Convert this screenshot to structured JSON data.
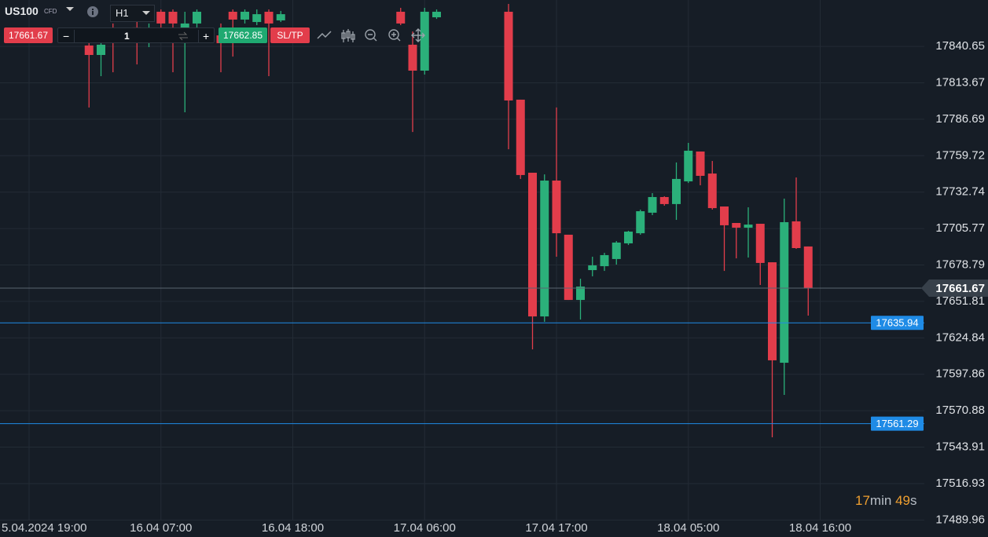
{
  "toolbar": {
    "symbol": "US100",
    "symbol_type": "CFD",
    "timeframe": "H1",
    "sell": "17661.67",
    "quantity": "1",
    "buy": "17662.85",
    "sltp": "SL/TP"
  },
  "timer": {
    "minutes": "17",
    "minutes_unit": "min",
    "seconds": "49",
    "seconds_unit": "s"
  },
  "chart_data": {
    "type": "candlestick",
    "categories": [
      "5.04.2024 19:00",
      null,
      null,
      null,
      null,
      null,
      null,
      null,
      null,
      null,
      null,
      "16.04 07:00",
      null,
      null,
      null,
      null,
      null,
      null,
      null,
      null,
      null,
      null,
      "16.04 18:00",
      null,
      null,
      null,
      null,
      null,
      null,
      null,
      null,
      null,
      null,
      "17.04 06:00",
      null,
      null,
      null,
      null,
      null,
      null,
      null,
      null,
      null,
      null,
      "17.04 17:00",
      null,
      null,
      null,
      null,
      null,
      null,
      null,
      null,
      null,
      null,
      "18.04 05:00",
      null,
      null,
      null,
      null,
      null,
      null,
      null,
      null,
      null,
      null,
      "18.04 16:00"
    ],
    "open": [
      null,
      null,
      null,
      null,
      null,
      17841.3,
      17834.3,
      17851.7,
      null,
      17854.7,
      17845.9,
      17866.3,
      17866.3,
      17843.0,
      17857.6,
      null,
      17848.8,
      17866.3,
      17860.5,
      17858.7,
      17866.3,
      17859.9,
      null,
      null,
      null,
      null,
      null,
      null,
      null,
      null,
      null,
      17866.3,
      17841.9,
      17822.7,
      17862.2,
      null,
      null,
      null,
      null,
      null,
      17866.3,
      17801.2,
      17747.1,
      17640.7,
      17741.3,
      17701.2,
      17652.9,
      17675.0,
      17677.9,
      17683.2,
      17694.8,
      17702.3,
      17717.5,
      17729.1,
      17723.9,
      17740.7,
      17762.8,
      17746.5,
      17722.1,
      17709.9,
      17706.4,
      17709.3,
      17680.8,
      17606.4,
      17711.1,
      17692.5,
      null
    ],
    "high": [
      null,
      null,
      null,
      null,
      null,
      17845.9,
      17845.9,
      17857.6,
      null,
      17860.5,
      17857.6,
      17868.0,
      17868.0,
      17866.3,
      17868.0,
      null,
      17857.6,
      17868.0,
      17868.0,
      17868.0,
      17868.0,
      17866.9,
      null,
      null,
      null,
      null,
      null,
      null,
      null,
      null,
      null,
      17869.2,
      17851.7,
      17869.2,
      17868.0,
      null,
      null,
      null,
      null,
      null,
      17872.1,
      17801.2,
      17747.1,
      17745.9,
      17795.4,
      17701.2,
      17668.6,
      17684.9,
      17687.8,
      17696.5,
      17704.1,
      17719.8,
      17732.0,
      17729.7,
      17754.7,
      17769.2,
      17762.8,
      17755.8,
      17722.1,
      17709.9,
      17721.5,
      17709.3,
      17680.8,
      17727.9,
      17743.6,
      17692.5,
      null
    ],
    "low": [
      null,
      null,
      null,
      null,
      null,
      17795.4,
      17818.6,
      17821.5,
      null,
      17827.3,
      17840.1,
      17851.7,
      17821.5,
      17791.9,
      17854.7,
      null,
      17821.5,
      17833.1,
      17857.6,
      17856.4,
      17818.6,
      17858.7,
      null,
      null,
      null,
      null,
      null,
      null,
      null,
      null,
      null,
      17856.4,
      17777.3,
      17819.8,
      17861.0,
      null,
      null,
      null,
      null,
      null,
      17764.5,
      17742.5,
      17616.3,
      17636.7,
      17684.9,
      17652.9,
      17638.4,
      17670.4,
      17674.4,
      17679.1,
      17693.6,
      17701.2,
      17715.7,
      17722.7,
      17712.2,
      17739.5,
      17737.8,
      17719.8,
      17674.4,
      17683.7,
      17684.3,
      17664.0,
      17551.2,
      17582.6,
      17690.7,
      17641.3,
      null
    ],
    "close": [
      null,
      null,
      null,
      null,
      null,
      17834.3,
      17841.9,
      17845.9,
      null,
      17847.1,
      17851.7,
      17857.6,
      17857.6,
      17857.6,
      17866.3,
      null,
      17843.0,
      17860.5,
      17866.3,
      17864.5,
      17857.6,
      17864.5,
      null,
      null,
      null,
      null,
      null,
      null,
      null,
      null,
      null,
      17857.6,
      17822.7,
      17866.3,
      17866.3,
      null,
      null,
      null,
      null,
      null,
      17800.6,
      17745.4,
      17640.7,
      17741.3,
      17702.3,
      17652.9,
      17662.8,
      17678.5,
      17686.1,
      17695.4,
      17703.5,
      17718.6,
      17729.1,
      17723.9,
      17742.5,
      17763.4,
      17744.8,
      17720.9,
      17708.2,
      17706.4,
      17708.7,
      17680.3,
      17608.2,
      17710.5,
      17691.3,
      17661.67,
      null
    ],
    "up_color": "#2bb07a",
    "down_color": "#e23d4b",
    "ylim": [
      17489,
      17875
    ],
    "yticks": [
      17840.65,
      17813.67,
      17786.69,
      17759.72,
      17732.74,
      17705.77,
      17678.79,
      17651.81,
      17624.84,
      17597.86,
      17570.88,
      17543.91,
      17516.93,
      17489.96
    ],
    "grid": true,
    "current_price": 17661.67,
    "current_price_color": "#5b6570",
    "price_lines": [
      {
        "value": 17635.94,
        "color": "#1f8be6"
      },
      {
        "value": 17561.29,
        "color": "#1f8be6"
      }
    ]
  }
}
